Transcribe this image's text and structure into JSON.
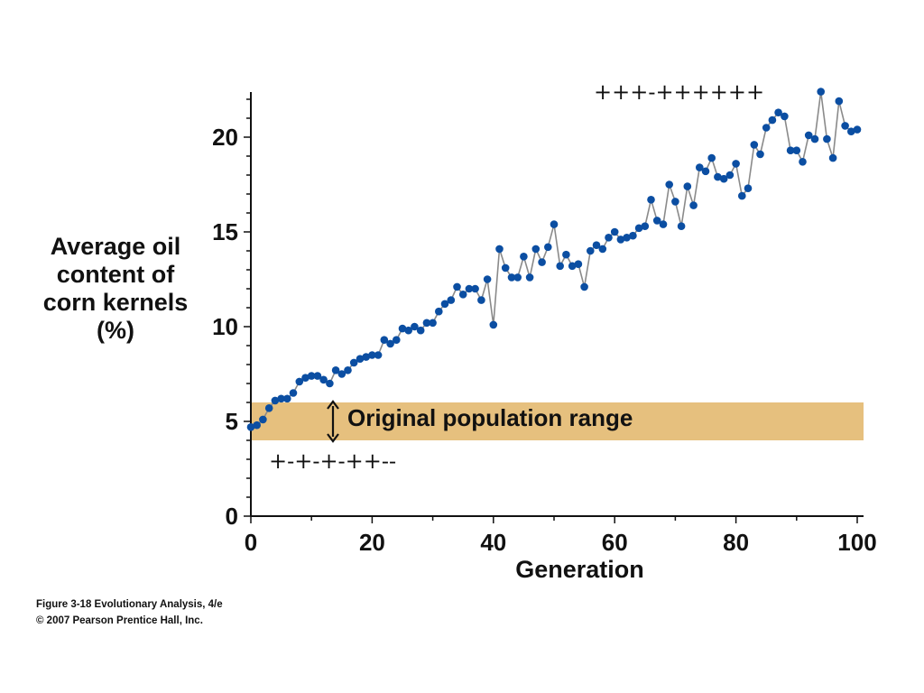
{
  "chart_data": {
    "type": "line",
    "xlabel": "Generation",
    "ylabel_lines": [
      "Average oil",
      "content of",
      "corn kernels",
      "(%)"
    ],
    "xlim": [
      0,
      100
    ],
    "ylim": [
      0,
      22.5
    ],
    "x_ticks": [
      0,
      20,
      40,
      60,
      80,
      100
    ],
    "y_ticks": [
      0,
      5,
      10,
      15,
      20
    ],
    "grid": false,
    "band": {
      "label": "Original population range",
      "y_range": [
        4,
        6
      ],
      "color": "#e6c07e"
    },
    "annotations": {
      "top_marks": "+++-++++++",
      "bottom_marks": "+-+-+-++--"
    },
    "series": [
      {
        "x": [
          0,
          1,
          2,
          3,
          4,
          5,
          6,
          7,
          8,
          9,
          10,
          11,
          12,
          13,
          14,
          15,
          16,
          17,
          18,
          19,
          20,
          21,
          22,
          23,
          24,
          25,
          26,
          27,
          28,
          29,
          30,
          31,
          32,
          33,
          34,
          35,
          36,
          37,
          38,
          39,
          40,
          41,
          42,
          43,
          44,
          45,
          46,
          47,
          48,
          49,
          50,
          51,
          52,
          53,
          54,
          55,
          56,
          57,
          58,
          59,
          60,
          61,
          62,
          63,
          64,
          65,
          66,
          67,
          68,
          69,
          70,
          71,
          72,
          73,
          74,
          75,
          76,
          77,
          78,
          79,
          80,
          81,
          82,
          83,
          84,
          85,
          86,
          87,
          88,
          89,
          90,
          91,
          92,
          93,
          94,
          95,
          96,
          97,
          98,
          99,
          100
        ],
        "y": [
          4.7,
          4.8,
          5.1,
          5.7,
          6.1,
          6.2,
          6.2,
          6.5,
          7.1,
          7.3,
          7.4,
          7.4,
          7.2,
          7.0,
          7.7,
          7.5,
          7.7,
          8.1,
          8.3,
          8.4,
          8.5,
          8.5,
          9.3,
          9.1,
          9.3,
          9.9,
          9.8,
          10.0,
          9.8,
          10.2,
          10.2,
          10.8,
          11.2,
          11.4,
          12.1,
          11.7,
          12.0,
          12.0,
          11.4,
          12.5,
          10.1,
          14.1,
          13.1,
          12.6,
          12.6,
          13.7,
          12.6,
          14.1,
          13.4,
          14.2,
          15.4,
          13.2,
          13.8,
          13.2,
          13.3,
          12.1,
          14.0,
          14.3,
          14.1,
          14.7,
          15.0,
          14.6,
          14.7,
          14.8,
          15.2,
          15.3,
          16.7,
          15.6,
          15.4,
          17.5,
          16.6,
          15.3,
          17.4,
          16.4,
          18.4,
          18.2,
          18.9,
          17.9,
          17.8,
          18.0,
          18.6,
          16.9,
          17.3,
          19.6,
          19.1,
          20.5,
          20.9,
          21.3,
          21.1,
          19.3,
          19.3,
          18.7,
          20.1,
          19.9,
          22.4,
          19.9,
          18.9,
          21.9,
          20.6,
          20.3,
          20.4
        ]
      }
    ]
  },
  "colors": {
    "marker": "#0b4ea2",
    "line": "#8a8a8a",
    "axis": "#111111",
    "band": "#e6c07e"
  },
  "caption": {
    "line1": "Figure 3-18  Evolutionary Analysis, 4/e",
    "line2": "© 2007 Pearson Prentice Hall, Inc."
  }
}
